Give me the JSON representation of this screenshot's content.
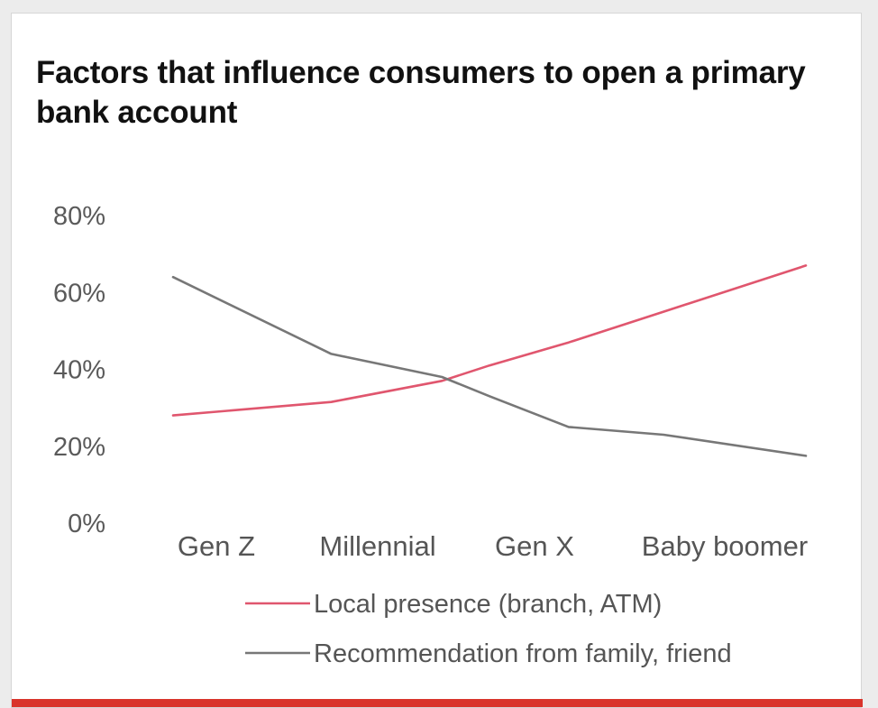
{
  "chart_data": {
    "type": "line",
    "title": "Factors that influence consumers to open a primary bank account",
    "categories": [
      "Gen Z",
      "Millennial",
      "Gen X",
      "Baby boomer"
    ],
    "series": [
      {
        "name": "Local presence (branch, ATM)",
        "color": "#e0566e",
        "points": [
          {
            "x": 0,
            "y": 28
          },
          {
            "x": 1,
            "y": 31.5
          },
          {
            "x": 1.7,
            "y": 37
          },
          {
            "x": 2,
            "y": 41
          },
          {
            "x": 2.5,
            "y": 47
          },
          {
            "x": 3.1,
            "y": 55
          },
          {
            "x": 4,
            "y": 67
          }
        ]
      },
      {
        "name": "Recommendation from family, friend",
        "color": "#777777",
        "points": [
          {
            "x": 0,
            "y": 64
          },
          {
            "x": 1,
            "y": 44
          },
          {
            "x": 1.7,
            "y": 38
          },
          {
            "x": 2,
            "y": 33
          },
          {
            "x": 2.5,
            "y": 25
          },
          {
            "x": 3.1,
            "y": 23
          },
          {
            "x": 4,
            "y": 17.5
          }
        ]
      }
    ],
    "y_ticks": [
      "80%",
      "60%",
      "40%",
      "20%",
      "0%"
    ],
    "y_tick_values": [
      80,
      60,
      40,
      20,
      0
    ],
    "ylim": [
      0,
      80
    ],
    "xlim": [
      0,
      4
    ],
    "grid": false,
    "legend_position": "bottom",
    "accent_color": "#d9342b"
  }
}
